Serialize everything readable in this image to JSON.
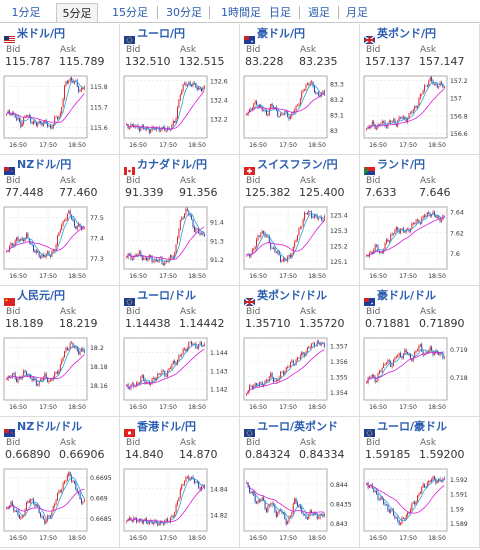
{
  "tabs": [
    {
      "label": "1分足",
      "active": false
    },
    {
      "label": "5分足",
      "active": true
    },
    {
      "label": "15分足",
      "active": false
    },
    {
      "label": "30分足",
      "active": false
    },
    {
      "label": "1時間足",
      "active": false
    },
    {
      "label": "日足",
      "active": false
    },
    {
      "label": "週足",
      "active": false
    },
    {
      "label": "月足",
      "active": false
    }
  ],
  "labels": {
    "bid": "Bid",
    "ask": "Ask"
  },
  "colors": {
    "up": "#dd2222",
    "down": "#2244aa",
    "ma_fast": "#2aa0d8",
    "ma_slow": "#d820d8",
    "link": "#2a5db0"
  },
  "x_ticks": [
    "16:50",
    "17:50",
    "18:50"
  ],
  "pairs": [
    {
      "id": "usdjpy",
      "name": "米ドル/円",
      "flag": "us",
      "bid": "115.787",
      "ask": "115.789",
      "y_ticks": [
        "115.8",
        "115.7",
        "115.6"
      ],
      "y_range": [
        115.55,
        115.85
      ],
      "trend": [
        115.66,
        115.68,
        115.64,
        115.62,
        115.66,
        115.64,
        115.61,
        115.63,
        115.62,
        115.6,
        115.64,
        115.66,
        115.8,
        115.84,
        115.82,
        115.78,
        115.8
      ]
    },
    {
      "id": "eurjpy",
      "name": "ユーロ/円",
      "flag": "eu",
      "bid": "132.510",
      "ask": "132.515",
      "y_ticks": [
        "132.6",
        "132.4",
        "132.2"
      ],
      "y_range": [
        132.0,
        132.65
      ],
      "trend": [
        132.12,
        132.14,
        132.1,
        132.12,
        132.08,
        132.1,
        132.09,
        132.11,
        132.07,
        132.12,
        132.16,
        132.48,
        132.56,
        132.58,
        132.54,
        132.52,
        132.51
      ]
    },
    {
      "id": "audjpy",
      "name": "豪ドル/円",
      "flag": "au",
      "bid": "83.228",
      "ask": "83.235",
      "y_ticks": [
        "83.3",
        "83.2",
        "83.1",
        "83"
      ],
      "y_range": [
        82.95,
        83.35
      ],
      "trend": [
        83.12,
        83.14,
        83.18,
        83.14,
        83.1,
        83.16,
        83.13,
        83.09,
        83.12,
        83.08,
        83.14,
        83.2,
        83.28,
        83.32,
        83.25,
        83.23,
        83.23
      ]
    },
    {
      "id": "gbpjpy",
      "name": "英ポンド/円",
      "flag": "gb",
      "bid": "157.137",
      "ask": "157.147",
      "y_ticks": [
        "157.2",
        "157",
        "156.8",
        "156.6"
      ],
      "y_range": [
        156.55,
        157.25
      ],
      "trend": [
        156.66,
        156.7,
        156.68,
        156.72,
        156.7,
        156.74,
        156.72,
        156.78,
        156.76,
        156.82,
        156.9,
        157.0,
        157.14,
        157.2,
        157.16,
        157.14,
        157.14
      ]
    },
    {
      "id": "nzdjpy",
      "name": "NZドル/円",
      "flag": "nz",
      "bid": "77.448",
      "ask": "77.460",
      "y_ticks": [
        "77.5",
        "77.4",
        "77.3"
      ],
      "y_range": [
        77.25,
        77.55
      ],
      "trend": [
        77.34,
        77.36,
        77.4,
        77.38,
        77.42,
        77.36,
        77.34,
        77.3,
        77.33,
        77.31,
        77.36,
        77.44,
        77.5,
        77.52,
        77.46,
        77.45,
        77.45
      ]
    },
    {
      "id": "cadjpy",
      "name": "カナダドル/円",
      "flag": "ca",
      "bid": "91.339",
      "ask": "91.356",
      "y_ticks": [
        "91.4",
        "91.3",
        "91.2"
      ],
      "y_range": [
        91.15,
        91.48
      ],
      "trend": [
        91.22,
        91.21,
        91.23,
        91.22,
        91.2,
        91.21,
        91.19,
        91.2,
        91.18,
        91.21,
        91.24,
        91.4,
        91.46,
        91.44,
        91.36,
        91.34,
        91.34
      ]
    },
    {
      "id": "chfjpy",
      "name": "スイスフラン/円",
      "flag": "ch",
      "bid": "125.382",
      "ask": "125.400",
      "y_ticks": [
        "125.4",
        "125.3",
        "125.2",
        "125.1"
      ],
      "y_range": [
        125.05,
        125.45
      ],
      "trend": [
        125.12,
        125.16,
        125.22,
        125.3,
        125.26,
        125.2,
        125.16,
        125.12,
        125.1,
        125.14,
        125.22,
        125.32,
        125.4,
        125.42,
        125.38,
        125.38,
        125.38
      ]
    },
    {
      "id": "zarjpy",
      "name": "ランド/円",
      "flag": "za",
      "bid": "7.633",
      "ask": "7.646",
      "y_ticks": [
        "7.64",
        "7.62",
        "7.6"
      ],
      "y_range": [
        7.585,
        7.645
      ],
      "trend": [
        7.598,
        7.602,
        7.606,
        7.6,
        7.61,
        7.618,
        7.622,
        7.624,
        7.62,
        7.626,
        7.63,
        7.632,
        7.636,
        7.64,
        7.636,
        7.634,
        7.634
      ]
    },
    {
      "id": "cnyjpy",
      "name": "人民元/円",
      "flag": "cn",
      "bid": "18.189",
      "ask": "18.219",
      "y_ticks": [
        "18.2",
        "18.18",
        "18.16"
      ],
      "y_range": [
        18.145,
        18.21
      ],
      "trend": [
        18.168,
        18.172,
        18.166,
        18.17,
        18.174,
        18.168,
        18.162,
        18.166,
        18.17,
        18.164,
        18.172,
        18.18,
        18.196,
        18.204,
        18.2,
        18.196,
        18.196
      ]
    },
    {
      "id": "eurusd",
      "name": "ユーロ/ドル",
      "flag": "eu_us",
      "bid": "1.14438",
      "ask": "1.14442",
      "y_ticks": [
        "1.144",
        "1.143",
        "1.142"
      ],
      "y_range": [
        1.1414,
        1.1448
      ],
      "trend": [
        1.1422,
        1.1421,
        1.1423,
        1.1426,
        1.1424,
        1.1423,
        1.1427,
        1.1429,
        1.1428,
        1.1432,
        1.1435,
        1.1438,
        1.1442,
        1.1445,
        1.1444,
        1.1444,
        1.1444
      ]
    },
    {
      "id": "gbpusd",
      "name": "英ポンド/ドル",
      "flag": "gb_us",
      "bid": "1.35710",
      "ask": "1.35720",
      "y_ticks": [
        "1.357",
        "1.356",
        "1.355",
        "1.354"
      ],
      "y_range": [
        1.3535,
        1.3575
      ],
      "trend": [
        1.3541,
        1.3543,
        1.3546,
        1.3544,
        1.3548,
        1.355,
        1.3547,
        1.3551,
        1.3555,
        1.3558,
        1.356,
        1.3563,
        1.3566,
        1.3569,
        1.3572,
        1.3571,
        1.3571
      ]
    },
    {
      "id": "audusd",
      "name": "豪ドル/ドル",
      "flag": "au_us",
      "bid": "0.71881",
      "ask": "0.71890",
      "y_ticks": [
        "0.719",
        "0.718"
      ],
      "y_range": [
        0.7172,
        0.7194
      ],
      "trend": [
        0.7178,
        0.7181,
        0.7179,
        0.7183,
        0.7186,
        0.7184,
        0.7188,
        0.7187,
        0.719,
        0.7186,
        0.7189,
        0.7191,
        0.7188,
        0.719,
        0.7189,
        0.7188,
        0.7188
      ]
    },
    {
      "id": "nzdusd",
      "name": "NZドル/ドル",
      "flag": "nz_us",
      "bid": "0.66890",
      "ask": "0.66906",
      "y_ticks": [
        "0.6695",
        "0.669",
        "0.6685"
      ],
      "y_range": [
        0.6682,
        0.6697
      ],
      "trend": [
        0.6687,
        0.6689,
        0.6686,
        0.6685,
        0.6688,
        0.669,
        0.6688,
        0.6686,
        0.6684,
        0.6686,
        0.6689,
        0.6692,
        0.6694,
        0.6696,
        0.6693,
        0.669,
        0.6689
      ]
    },
    {
      "id": "hkdjpy",
      "name": "香港ドル/円",
      "flag": "hk",
      "bid": "14.840",
      "ask": "14.870",
      "y_ticks": [
        "14.84",
        "14.82"
      ],
      "y_range": [
        14.808,
        14.855
      ],
      "trend": [
        14.816,
        14.818,
        14.815,
        14.817,
        14.814,
        14.816,
        14.813,
        14.815,
        14.814,
        14.818,
        14.822,
        14.84,
        14.846,
        14.85,
        14.845,
        14.842,
        14.841
      ]
    },
    {
      "id": "eurgbp",
      "name": "ユーロ/英ポンド",
      "flag": "eu_gb",
      "bid": "0.84324",
      "ask": "0.84334",
      "y_ticks": [
        "0.844",
        "0.8435",
        "0.843"
      ],
      "y_range": [
        0.8428,
        0.8444
      ],
      "trend": [
        0.844,
        0.8438,
        0.8435,
        0.8437,
        0.8433,
        0.8436,
        0.8432,
        0.8434,
        0.843,
        0.8432,
        0.8436,
        0.8434,
        0.8431,
        0.8433,
        0.8432,
        0.8432,
        0.8432
      ]
    },
    {
      "id": "euraud",
      "name": "ユーロ/豪ドル",
      "flag": "eu_au",
      "bid": "1.59185",
      "ask": "1.59200",
      "y_ticks": [
        "1.592",
        "1.591",
        "1.59",
        "1.589"
      ],
      "y_range": [
        1.5885,
        1.5927
      ],
      "trend": [
        1.5918,
        1.5914,
        1.591,
        1.5906,
        1.5902,
        1.5898,
        1.5894,
        1.589,
        1.5895,
        1.59,
        1.5905,
        1.5912,
        1.5916,
        1.5919,
        1.592,
        1.5919,
        1.5919
      ]
    }
  ]
}
